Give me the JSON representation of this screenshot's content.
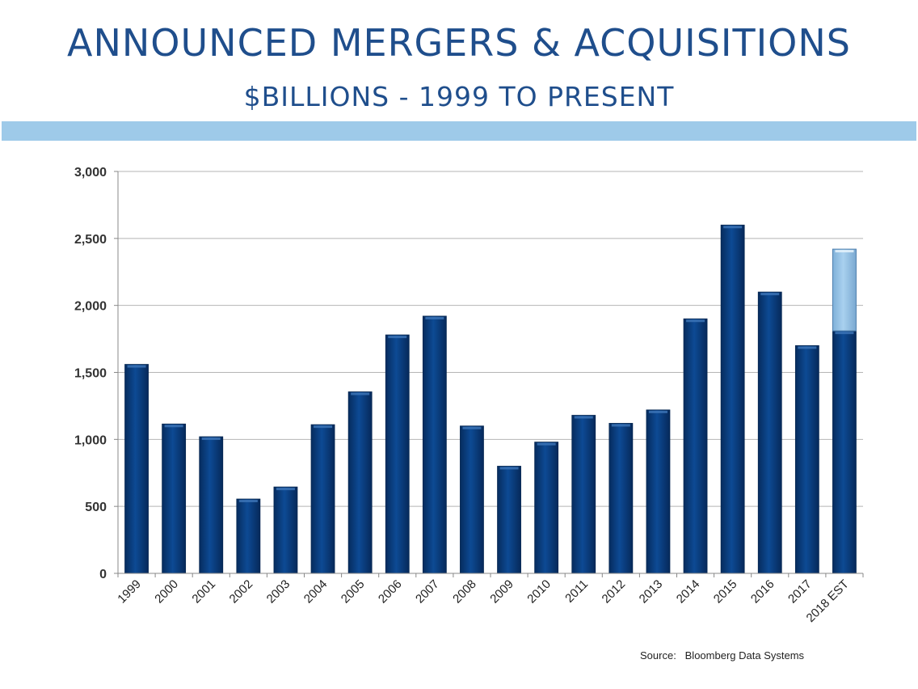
{
  "title": "ANNOUNCED MERGERS & ACQUISITIONS",
  "subtitle": "$BILLIONS - 1999 TO PRESENT",
  "source": "Source:   Bloomberg Data Systems",
  "colors": {
    "title": "#1f4e8c",
    "accent_band": "#9ecae9",
    "bar": "#0b3d7e",
    "estimate": "#9ac6e6",
    "grid": "#b5b5b5"
  },
  "chart_data": {
    "type": "bar",
    "categories": [
      "1999",
      "2000",
      "2001",
      "2002",
      "2003",
      "2004",
      "2005",
      "2006",
      "2007",
      "2008",
      "2009",
      "2010",
      "2011",
      "2012",
      "2013",
      "2014",
      "2015",
      "2016",
      "2017",
      "2018 EST"
    ],
    "values": [
      1560,
      1115,
      1020,
      555,
      645,
      1110,
      1355,
      1780,
      1920,
      1100,
      800,
      980,
      1180,
      1120,
      1220,
      1900,
      2600,
      2100,
      1700,
      1810
    ],
    "estimate_extra": {
      "category": "2018 EST",
      "from": 1810,
      "to": 2420
    },
    "ylim": [
      0,
      3000
    ],
    "yticks": [
      0,
      500,
      1000,
      1500,
      2000,
      2500,
      3000
    ],
    "ytick_labels": [
      "0",
      "500",
      "1,000",
      "1,500",
      "2,000",
      "2,500",
      "3,000"
    ],
    "grid": true,
    "legend": "none",
    "xlabel": "",
    "ylabel": ""
  }
}
